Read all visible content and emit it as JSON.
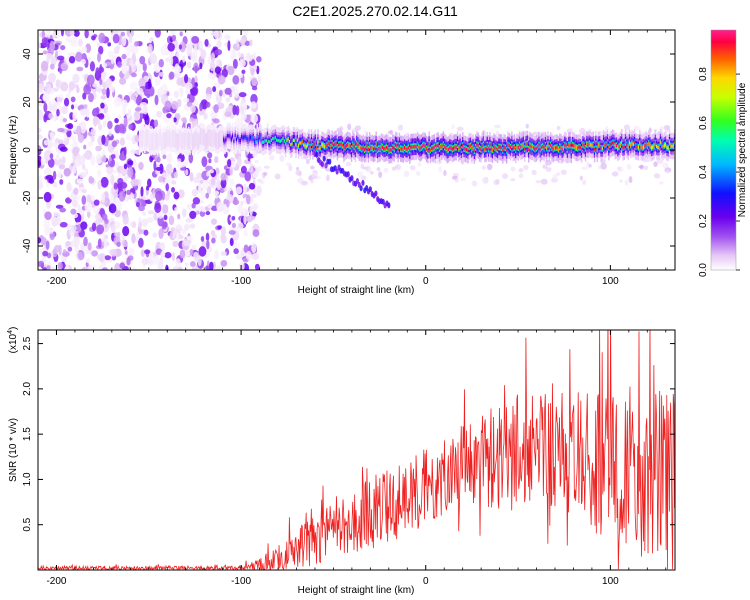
{
  "title": "C2E1.2025.270.02.14.G11",
  "chart_data": [
    {
      "type": "heatmap",
      "panel": "top",
      "xlabel": "Height of straight line (km)",
      "ylabel": "Frequency (Hz)",
      "xlim": [
        -210,
        135
      ],
      "ylim": [
        -50,
        50
      ],
      "xticks": [
        -200,
        -100,
        0,
        100
      ],
      "xtick_labels": [
        "-200",
        "-100",
        "0",
        "100"
      ],
      "yticks": [
        -40,
        -20,
        0,
        20,
        40
      ],
      "ytick_labels": [
        "-40",
        "-20",
        "0",
        "20",
        "40"
      ],
      "colorbar": {
        "label": "Normalized spectral amplitude",
        "range": [
          0.0,
          0.98
        ],
        "ticks": [
          0.0,
          0.2,
          0.4,
          0.6,
          0.8
        ],
        "tick_labels": [
          "0.0",
          "0.2",
          "0.4",
          "0.6",
          "0.8"
        ],
        "colormap": [
          "#ffffff",
          "#e6c8f5",
          "#a050f0",
          "#6a00ee",
          "#1010ff",
          "#00b8ff",
          "#00ffb0",
          "#30ff20",
          "#c8ff00",
          "#ffd700",
          "#ff6000",
          "#ff0040",
          "#ff2090"
        ]
      },
      "noise_region_x": [
        -210,
        -90
      ],
      "signal_ridge": {
        "x": [
          -150,
          -100,
          -80,
          -60,
          -40,
          -20,
          0,
          20,
          40,
          60,
          80,
          100,
          120,
          135
        ],
        "frequency": [
          4,
          5,
          4,
          2,
          1.5,
          1,
          1,
          1,
          1,
          1.5,
          1,
          2,
          2,
          2
        ],
        "peak_amplitude": [
          0.2,
          0.3,
          0.55,
          0.8,
          0.9,
          0.95,
          0.97,
          0.95,
          0.93,
          0.92,
          0.9,
          0.85,
          0.8,
          0.75
        ]
      },
      "secondary_branch": {
        "x": [
          -60,
          -50,
          -40,
          -30,
          -20
        ],
        "frequency": [
          -3,
          -7,
          -12,
          -17,
          -24
        ]
      }
    },
    {
      "type": "line",
      "panel": "bottom",
      "color": "#ee2020",
      "xlabel": "Height of straight line (km)",
      "ylabel": "SNR (10 * v/v)",
      "y_multiplier": "(x10",
      "y_multiplier_exp": "4",
      "y_multiplier_close": ")",
      "xlim": [
        -210,
        135
      ],
      "ylim": [
        0,
        2.65
      ],
      "xticks": [
        -200,
        -100,
        0,
        100
      ],
      "xtick_labels": [
        "-200",
        "-100",
        "0",
        "100"
      ],
      "yticks": [
        0.5,
        1.0,
        1.5,
        2.0,
        2.5
      ],
      "ytick_labels": [
        "0.5",
        "1.0",
        "1.5",
        "2.0",
        "2.5"
      ],
      "envelope": {
        "x": [
          -210,
          -100,
          -90,
          -80,
          -70,
          -60,
          -50,
          -40,
          -30,
          -20,
          -10,
          0,
          10,
          20,
          30,
          40,
          50,
          60,
          70,
          80,
          90,
          100,
          110,
          120,
          130,
          135
        ],
        "mean": [
          0.02,
          0.02,
          0.04,
          0.14,
          0.24,
          0.32,
          0.42,
          0.52,
          0.62,
          0.72,
          0.82,
          0.95,
          1.05,
          1.18,
          1.25,
          1.3,
          1.33,
          1.32,
          1.3,
          1.24,
          1.2,
          1.15,
          1.1,
          1.08,
          1.05,
          1.02
        ],
        "spread": [
          0.015,
          0.015,
          0.05,
          0.1,
          0.14,
          0.17,
          0.2,
          0.23,
          0.25,
          0.26,
          0.27,
          0.28,
          0.28,
          0.3,
          0.33,
          0.36,
          0.4,
          0.4,
          0.42,
          0.45,
          0.5,
          0.55,
          0.6,
          0.62,
          0.6,
          0.6
        ]
      }
    }
  ]
}
